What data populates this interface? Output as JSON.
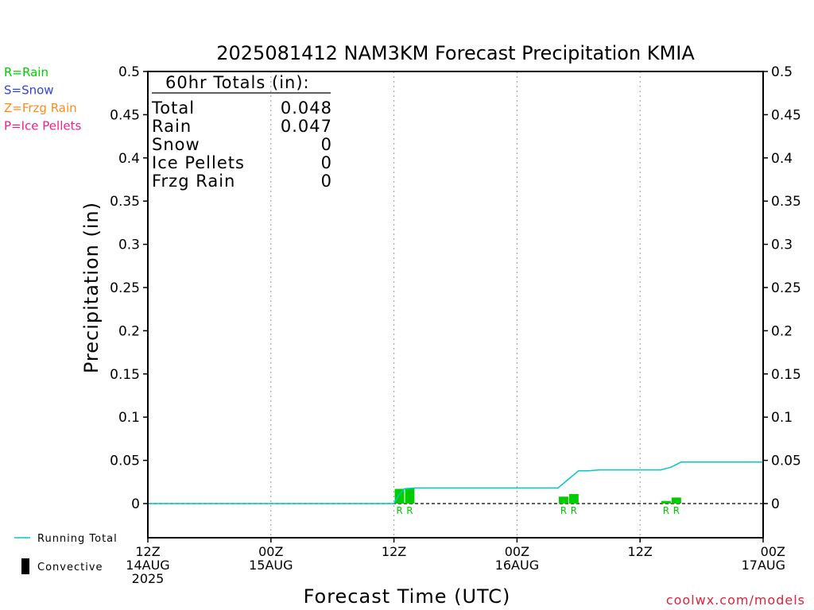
{
  "chart_data": {
    "type": "bar",
    "title": "2025081412 NAM3KM Forecast Precipitation KMIA",
    "xlabel": "Forecast Time (UTC)",
    "ylabel": "Precipitation (in)",
    "ylim": [
      -0.04,
      0.5
    ],
    "y_ticks": [
      0,
      0.05,
      0.1,
      0.15,
      0.2,
      0.25,
      0.3,
      0.35,
      0.4,
      0.45,
      0.5
    ],
    "y_tick_labels": [
      "0",
      "0.05",
      "0.1",
      "0.15",
      "0.2",
      "0.25",
      "0.3",
      "0.35",
      "0.4",
      "0.45",
      "0.5"
    ],
    "xlim_hours": [
      0,
      60
    ],
    "x_ticks": [
      {
        "hour": 0,
        "lines": [
          "12Z",
          "14AUG",
          "2025"
        ]
      },
      {
        "hour": 12,
        "lines": [
          "00Z",
          "15AUG"
        ]
      },
      {
        "hour": 24,
        "lines": [
          "12Z"
        ]
      },
      {
        "hour": 36,
        "lines": [
          "00Z",
          "16AUG"
        ]
      },
      {
        "hour": 48,
        "lines": [
          "12Z"
        ]
      },
      {
        "hour": 60,
        "lines": [
          "00Z",
          "17AUG"
        ]
      }
    ],
    "grid": "vertical dotted at x ticks",
    "bars": [
      {
        "hour": 25,
        "value": 0.017,
        "type": "R"
      },
      {
        "hour": 26,
        "value": 0.018,
        "type": "R"
      },
      {
        "hour": 41,
        "value": 0.008,
        "type": "R"
      },
      {
        "hour": 42,
        "value": 0.011,
        "type": "R"
      },
      {
        "hour": 51,
        "value": 0.003,
        "type": "R"
      },
      {
        "hour": 52,
        "value": 0.007,
        "type": "R"
      }
    ],
    "running_total": {
      "name": "Running Total",
      "x": [
        0,
        24,
        24.5,
        25,
        26,
        40,
        41,
        42,
        43,
        44,
        50,
        51,
        52,
        60
      ],
      "y": [
        0,
        0,
        0.01,
        0.017,
        0.018,
        0.018,
        0.028,
        0.038,
        0.038,
        0.039,
        0.039,
        0.042,
        0.048,
        0.048
      ]
    },
    "colors": {
      "rain": "#00cc00",
      "snow": "#3344dd",
      "frzg_rain": "#ff8c1a",
      "ice_pellets": "#ee2288",
      "running_total": "#00c8c8",
      "convective": "#000000"
    },
    "totals_box": {
      "heading": "60hr Totals (in):",
      "rows": [
        {
          "label": "Total",
          "value": "0.048"
        },
        {
          "label": "Rain",
          "value": "0.047"
        },
        {
          "label": "Snow",
          "value": "0"
        },
        {
          "label": "Ice Pellets",
          "value": "0"
        },
        {
          "label": "Frzg Rain",
          "value": "0"
        }
      ]
    },
    "type_legend": [
      {
        "text": "R=Rain",
        "color": "#00cc00"
      },
      {
        "text": "S=Snow",
        "color": "#3344dd"
      },
      {
        "text": "Z=Frzg Rain",
        "color": "#ff8c1a"
      },
      {
        "text": "P=Ice Pellets",
        "color": "#ee2288"
      }
    ],
    "line_legend": [
      {
        "text": "Running Total"
      },
      {
        "text": "Convective"
      }
    ]
  },
  "credit": "coolwx.com/models"
}
